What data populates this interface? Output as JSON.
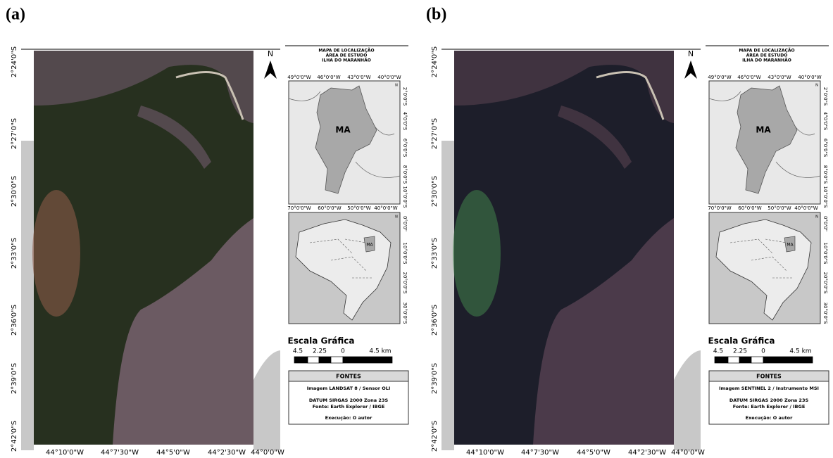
{
  "panels": [
    {
      "label": "(a)",
      "map": {
        "lat_labels": [
          "2°24'0\"S",
          "2°27'0\"S",
          "2°30'0\"S",
          "2°33'0\"S",
          "2°36'0\"S",
          "2°39'0\"S",
          "2°42'0\"S"
        ],
        "lon_labels": [
          "44°10'0\"W",
          "44°7'30\"W",
          "44°5'0\"W",
          "44°2'30\"W",
          "44°0'0\"W"
        ],
        "north": "N"
      },
      "inset": {
        "title": [
          "MAPA DE LOCALIZAÇÃO",
          "ÁREA DE ESTUDO",
          "ILHA DO MARANHÃO"
        ],
        "state_map": {
          "lon_labels": [
            "49°0'0\"W",
            "46°0'0\"W",
            "43°0'0\"W",
            "40°0'0\"W"
          ],
          "lat_labels": [
            "2°0'0\"S",
            "4°0'0\"S",
            "6°0'0\"S",
            "8°0'0\"S",
            "10°0'0\"S"
          ],
          "state": "MA",
          "north": "N"
        },
        "country_map": {
          "lon_labels": [
            "70°0'0\"W",
            "60°0'0\"W",
            "50°0'0\"W",
            "40°0'0\"W"
          ],
          "lat_labels": [
            "0°0'0\"",
            "10°0'0\"S",
            "20°0'0\"S",
            "30°0'0\"S"
          ],
          "state": "MA",
          "north": "N"
        }
      },
      "scale": {
        "title": "Escala Gráfica",
        "labels": [
          "4.5",
          "2.25",
          "0",
          "4.5 km"
        ]
      },
      "sources": {
        "title": "FONTES",
        "lines": [
          "Imagem LANDSAT 8 / Sensor OLI",
          "DATUM SIRGAS 2000 Zona 23S",
          "Fonte: Earth Explorer / IBGE",
          "Execução: O autor"
        ]
      }
    },
    {
      "label": "(b)",
      "map": {
        "lat_labels": [
          "2°24'0\"S",
          "2°27'0\"S",
          "2°30'0\"S",
          "2°33'0\"S",
          "2°36'0\"S",
          "2°39'0\"S",
          "2°42'0\"S"
        ],
        "lon_labels": [
          "44°10'0\"W",
          "44°7'30\"W",
          "44°5'0\"W",
          "44°2'30\"W",
          "44°0'0\"W"
        ],
        "north": "N"
      },
      "inset": {
        "title": [
          "MAPA DE LOCALIZAÇÃO",
          "ÁREA DE ESTUDO",
          "ILHA DO MARANHÃO"
        ],
        "state_map": {
          "lon_labels": [
            "49°0'0\"W",
            "46°0'0\"W",
            "43°0'0\"W",
            "40°0'0\"W"
          ],
          "lat_labels": [
            "2°0'0\"S",
            "4°0'0\"S",
            "6°0'0\"S",
            "8°0'0\"S",
            "10°0'0\"S"
          ],
          "state": "MA",
          "north": "N"
        },
        "country_map": {
          "lon_labels": [
            "70°0'0\"W",
            "60°0'0\"W",
            "50°0'0\"W",
            "40°0'0\"W"
          ],
          "lat_labels": [
            "0°0'0\"",
            "10°0'0\"S",
            "20°0'0\"S",
            "30°0'0\"S"
          ],
          "state": "MA",
          "north": "N"
        }
      },
      "scale": {
        "title": "Escala Gráfica",
        "labels": [
          "4.5",
          "2.25",
          "0",
          "4.5 km"
        ]
      },
      "sources": {
        "title": "FONTES",
        "lines": [
          "Imagem SENTINEL 2 / Instrumento MSI",
          "DATUM SIRGAS 2000 Zona 23S",
          "Fonte: Earth Explorer / IBGE",
          "Execução: O autor"
        ]
      }
    }
  ]
}
